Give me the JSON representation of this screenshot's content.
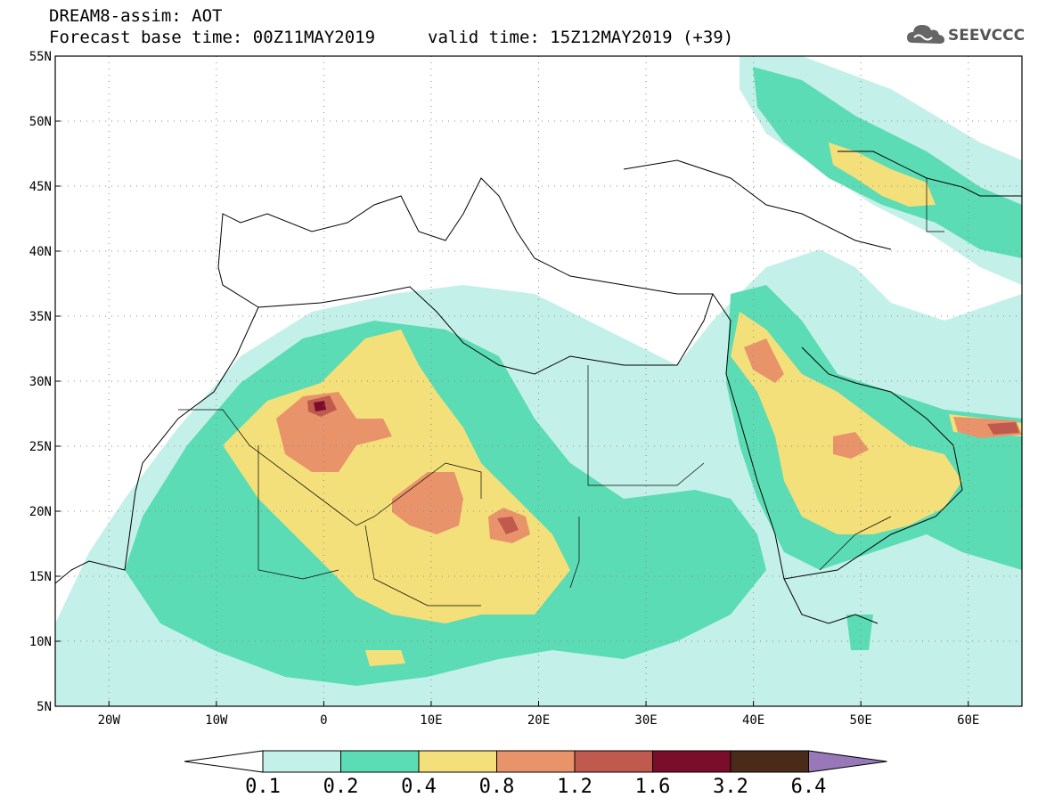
{
  "header": {
    "line1": "DREAM8-assim: AOT",
    "line2": "Forecast base time: 00Z11MAY2019",
    "valid": "valid time: 15Z12MAY2019 (+39)"
  },
  "logo": {
    "text": "SEEVCCC",
    "icon": "cloud-icon"
  },
  "map": {
    "lon_range": [
      -25,
      65
    ],
    "lat_range": [
      5,
      55
    ],
    "lat_ticks": [
      "5N",
      "10N",
      "15N",
      "20N",
      "25N",
      "30N",
      "35N",
      "40N",
      "45N",
      "50N",
      "55N"
    ],
    "lon_ticks": [
      "20W",
      "10W",
      "0",
      "10E",
      "20E",
      "30E",
      "40E",
      "50E",
      "60E"
    ],
    "grid": "dotted",
    "colors": {
      "c01": "#c4f0ea",
      "c02": "#5cdcb4",
      "c04": "#f4e07a",
      "c08": "#e8936a",
      "c12": "#c05a4e",
      "c16": "#7a0e2a",
      "c32": "#4a2a18",
      "c64": "#9878b8"
    }
  },
  "colorbar": {
    "labels": [
      "0.1",
      "0.2",
      "0.4",
      "0.8",
      "1.2",
      "1.6",
      "3.2",
      "6.4"
    ],
    "colors": [
      "#ffffff",
      "#c4f0ea",
      "#5cdcb4",
      "#f4e07a",
      "#e8936a",
      "#c05a4e",
      "#7a0e2a",
      "#4a2a18",
      "#9878b8"
    ]
  }
}
